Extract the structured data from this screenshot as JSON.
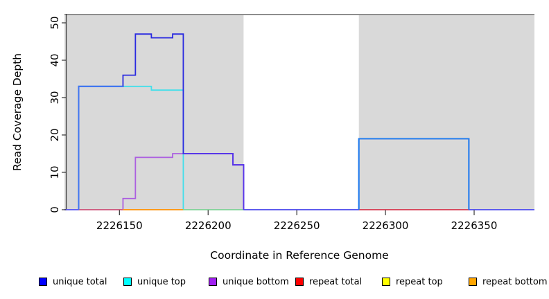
{
  "figure": {
    "background": "#ffffff"
  },
  "chart_data": {
    "type": "line",
    "subtype": "step-coverage",
    "title": "",
    "xlabel": "Coordinate in Reference Genome",
    "ylabel": "Read Coverage Depth",
    "x_domain": [
      2226119,
      2226384
    ],
    "y_domain": [
      0,
      52.4
    ],
    "grid": "off",
    "legend_position": "bottom",
    "shade_color": "#d9d9d9",
    "top_border_color": "#8d8d8d",
    "axis_color": "#333333",
    "shaded_regions": [
      [
        2226119,
        2226220
      ],
      [
        2226285,
        2226384
      ]
    ],
    "x_ticks": [
      {
        "value": 2226150,
        "label": "2226150"
      },
      {
        "value": 2226200,
        "label": "2226200"
      },
      {
        "value": 2226250,
        "label": "2226250"
      },
      {
        "value": 2226300,
        "label": "2226300"
      },
      {
        "value": 2226350,
        "label": "2226350"
      }
    ],
    "y_ticks": [
      {
        "value": 0,
        "label": "0"
      },
      {
        "value": 10,
        "label": "10"
      },
      {
        "value": 20,
        "label": "20"
      },
      {
        "value": 30,
        "label": "30"
      },
      {
        "value": 40,
        "label": "40"
      },
      {
        "value": 50,
        "label": "50"
      }
    ],
    "series": [
      {
        "name": "unique total",
        "legend_color": "#0000ff",
        "stroke": "#2a2ae0",
        "points": [
          [
            2226119,
            0
          ],
          [
            2226127,
            0
          ],
          [
            2226127,
            33
          ],
          [
            2226152,
            33
          ],
          [
            2226152,
            36
          ],
          [
            2226159,
            36
          ],
          [
            2226159,
            47
          ],
          [
            2226168,
            47
          ],
          [
            2226168,
            46
          ],
          [
            2226180,
            46
          ],
          [
            2226180,
            47
          ],
          [
            2226186,
            47
          ],
          [
            2226186,
            15
          ],
          [
            2226214,
            15
          ],
          [
            2226214,
            12
          ],
          [
            2226220,
            12
          ],
          [
            2226220,
            0
          ],
          [
            2226285,
            0
          ],
          [
            2226285,
            19
          ],
          [
            2226347,
            19
          ],
          [
            2226347,
            0
          ],
          [
            2226384,
            0
          ]
        ]
      },
      {
        "name": "unique top",
        "legend_color": "#00ffff",
        "stroke": "#43dfea",
        "points": [
          [
            2226119,
            0
          ],
          [
            2226127,
            0
          ],
          [
            2226127,
            33
          ],
          [
            2226168,
            33
          ],
          [
            2226168,
            32
          ],
          [
            2226186,
            32
          ],
          [
            2226186,
            0
          ],
          [
            2226285,
            0
          ],
          [
            2226285,
            19
          ],
          [
            2226347,
            19
          ],
          [
            2226347,
            0
          ],
          [
            2226384,
            0
          ]
        ]
      },
      {
        "name": "unique bottom",
        "legend_color": "#a020f0",
        "stroke": "#ab5fe0",
        "points": [
          [
            2226119,
            0
          ],
          [
            2226152,
            0
          ],
          [
            2226152,
            3
          ],
          [
            2226159,
            3
          ],
          [
            2226159,
            14
          ],
          [
            2226180,
            14
          ],
          [
            2226180,
            15
          ],
          [
            2226214,
            15
          ],
          [
            2226214,
            12
          ],
          [
            2226220,
            12
          ],
          [
            2226220,
            0
          ],
          [
            2226384,
            0
          ]
        ]
      },
      {
        "name": "repeat total",
        "legend_color": "#ff0000",
        "stroke": "#e04040",
        "points": [
          [
            2226119,
            0
          ],
          [
            2226384,
            0
          ]
        ]
      },
      {
        "name": "repeat top",
        "legend_color": "#ffff00",
        "stroke": "#ffff00",
        "points": [
          [
            2226119,
            0
          ],
          [
            2226384,
            0
          ]
        ]
      },
      {
        "name": "repeat bottom",
        "legend_color": "#ffa500",
        "stroke": "#ffa500",
        "points": [
          [
            2226119,
            0
          ],
          [
            2226384,
            0
          ]
        ]
      }
    ],
    "rendered_overlaps": [
      {
        "color": "#6b63f2",
        "points": [
          [
            2226119,
            0
          ],
          [
            2226127,
            0
          ]
        ]
      },
      {
        "color": "#d2627e",
        "points": [
          [
            2226127,
            0
          ],
          [
            2226152,
            0
          ]
        ]
      },
      {
        "color": "#ffa018",
        "points": [
          [
            2226152,
            0
          ],
          [
            2226186,
            0
          ]
        ]
      },
      {
        "color": "#8fd69b",
        "points": [
          [
            2226186,
            0
          ],
          [
            2226220,
            0
          ]
        ]
      },
      {
        "color": "#655ef0",
        "points": [
          [
            2226220,
            0
          ],
          [
            2226285,
            0
          ]
        ]
      },
      {
        "color": "#dc4a55",
        "points": [
          [
            2226285,
            0
          ],
          [
            2226347,
            0
          ]
        ]
      },
      {
        "color": "#655ef0",
        "points": [
          [
            2226347,
            0
          ],
          [
            2226384,
            0
          ]
        ]
      },
      {
        "color": "#4076f2",
        "points": [
          [
            2226127,
            0
          ],
          [
            2226127,
            33
          ],
          [
            2226152,
            33
          ]
        ]
      },
      {
        "color": "#5a35ea",
        "points": [
          [
            2226186,
            15
          ],
          [
            2226214,
            15
          ],
          [
            2226214,
            12
          ],
          [
            2226220,
            12
          ],
          [
            2226220,
            0
          ]
        ]
      },
      {
        "color": "#1e7cf0",
        "points": [
          [
            2226285,
            0
          ],
          [
            2226285,
            19
          ],
          [
            2226347,
            19
          ],
          [
            2226347,
            0
          ]
        ]
      }
    ]
  },
  "legend": {
    "items": [
      {
        "label": "unique total",
        "color": "#0000ff"
      },
      {
        "label": "unique top",
        "color": "#00ffff"
      },
      {
        "label": "unique bottom",
        "color": "#a020f0"
      },
      {
        "label": "repeat total",
        "color": "#ff0000"
      },
      {
        "label": "repeat top",
        "color": "#ffff00"
      },
      {
        "label": "repeat bottom",
        "color": "#ffa500"
      }
    ]
  }
}
